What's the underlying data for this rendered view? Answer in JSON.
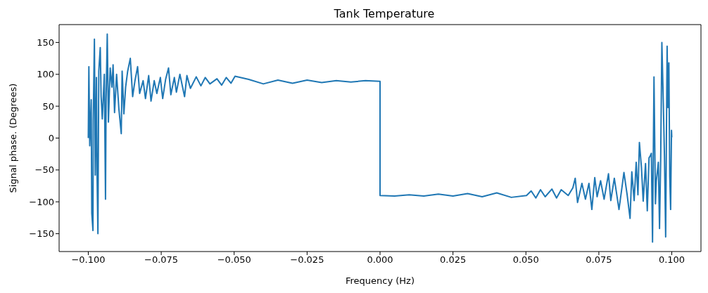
{
  "chart_data": {
    "type": "line",
    "title": "Tank Temperature",
    "xlabel": "Frequency (Hz)",
    "ylabel": "Signal phase. (Degrees)",
    "xlim": [
      -0.11,
      0.11
    ],
    "xticks": [
      {
        "value": -0.1,
        "label": "−0.100"
      },
      {
        "value": -0.075,
        "label": "−0.075"
      },
      {
        "value": -0.05,
        "label": "−0.050"
      },
      {
        "value": -0.025,
        "label": "−0.025"
      },
      {
        "value": 0,
        "label": "0.000"
      },
      {
        "value": 0.025,
        "label": "0.025"
      },
      {
        "value": 0.05,
        "label": "0.050"
      },
      {
        "value": 0.075,
        "label": "0.075"
      },
      {
        "value": 0.1,
        "label": "0.100"
      }
    ],
    "ylim": [
      -178,
      178
    ],
    "yticks": [
      {
        "value": -150,
        "label": "−150"
      },
      {
        "value": -100,
        "label": "−100"
      },
      {
        "value": -50,
        "label": "−50"
      },
      0,
      50,
      100,
      150
    ],
    "marker": "none",
    "line_style": "solid",
    "series": [
      {
        "color": "#1f77b4",
        "x": [
          -0.1,
          -0.0998,
          -0.0995,
          -0.099,
          -0.0988,
          -0.0984,
          -0.0983,
          -0.0979,
          -0.0976,
          -0.0972,
          -0.097,
          -0.0967,
          -0.0964,
          -0.0959,
          -0.0956,
          -0.0952,
          -0.0945,
          -0.0941,
          -0.0939,
          -0.0935,
          -0.0931,
          -0.0925,
          -0.0919,
          -0.0915,
          -0.091,
          -0.0903,
          -0.0895,
          -0.0887,
          -0.0884,
          -0.0878,
          -0.0872,
          -0.0865,
          -0.0856,
          -0.0848,
          -0.084,
          -0.0831,
          -0.0824,
          -0.0812,
          -0.0804,
          -0.0793,
          -0.0785,
          -0.0774,
          -0.0765,
          -0.0753,
          -0.0745,
          -0.0735,
          -0.0725,
          -0.0717,
          -0.0705,
          -0.0698,
          -0.0686,
          -0.067,
          -0.0662,
          -0.065,
          -0.063,
          -0.0614,
          -0.0599,
          -0.0583,
          -0.0559,
          -0.0543,
          -0.0527,
          -0.0511,
          -0.0497,
          -0.045,
          -0.04,
          -0.035,
          -0.03,
          -0.025,
          -0.02,
          -0.015,
          -0.01,
          -0.005,
          0,
          0,
          0.005,
          0.01,
          0.015,
          0.02,
          0.025,
          0.03,
          0.035,
          0.04,
          0.045,
          0.0502,
          0.0518,
          0.0534,
          0.055,
          0.0566,
          0.0589,
          0.0605,
          0.0621,
          0.0645,
          0.0661,
          0.0669,
          0.0677,
          0.0692,
          0.0704,
          0.0716,
          0.0726,
          0.0736,
          0.0744,
          0.0756,
          0.0768,
          0.0783,
          0.0791,
          0.0803,
          0.0819,
          0.0829,
          0.0836,
          0.0847,
          0.0857,
          0.0863,
          0.0871,
          0.0878,
          0.0884,
          0.0889,
          0.0896,
          0.0902,
          0.091,
          0.0916,
          0.0922,
          0.0926,
          0.093,
          0.0934,
          0.0939,
          0.0944,
          0.0947,
          0.0954,
          0.0958,
          0.0962,
          0.0966,
          0.0971,
          0.0975,
          0.0979,
          0.0984,
          0.0987,
          0.099,
          0.0993,
          0.0996,
          0.0999,
          0.1
        ],
        "values": [
          0,
          112,
          -12,
          60,
          -118,
          -145,
          28,
          155,
          -58,
          95,
          -55,
          -150,
          105,
          142,
          65,
          30,
          100,
          -96,
          60,
          163,
          25,
          110,
          80,
          115,
          40,
          100,
          45,
          7,
          105,
          38,
          80,
          105,
          125,
          65,
          90,
          112,
          70,
          90,
          62,
          98,
          58,
          90,
          70,
          95,
          62,
          92,
          110,
          68,
          95,
          72,
          100,
          65,
          98,
          78,
          96,
          82,
          95,
          85,
          93,
          83,
          95,
          86,
          97,
          92,
          85,
          91,
          86,
          91,
          87,
          90,
          88,
          90,
          89,
          -90,
          -91,
          -89,
          -91,
          -88,
          -91,
          -87,
          -92,
          -86,
          -93,
          -90,
          -83,
          -94,
          -81,
          -92,
          -80,
          -94,
          -81,
          -90,
          -78,
          -63,
          -101,
          -71,
          -96,
          -71,
          -112,
          -62,
          -92,
          -67,
          -96,
          -56,
          -98,
          -63,
          -112,
          -78,
          -54,
          -89,
          -126,
          -53,
          -98,
          -38,
          -89,
          -7,
          -46,
          -99,
          -40,
          -114,
          -31,
          -28,
          -24,
          -163,
          96,
          -103,
          -67,
          -38,
          -142,
          -31,
          150,
          55,
          -31,
          -155,
          144,
          48,
          118,
          -60,
          -112,
          12,
          1
        ]
      }
    ]
  }
}
